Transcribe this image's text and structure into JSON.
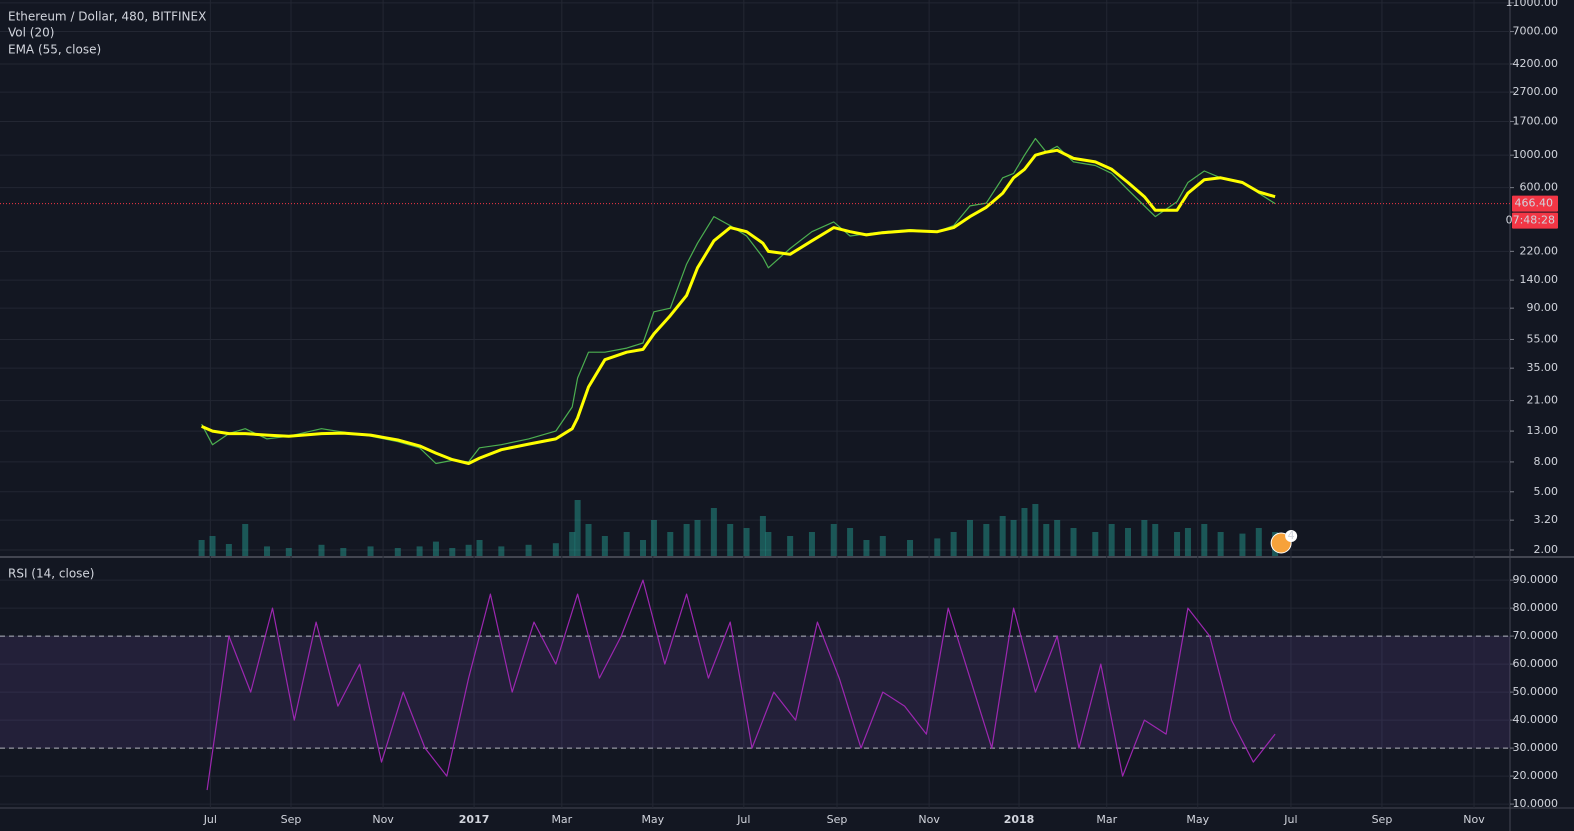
{
  "chart_data": [
    {
      "type": "line",
      "title": "Ethereum / Dollar, 480, BITFINEX",
      "log_scale": true,
      "grid": true,
      "x": [
        2016.5,
        2016.52,
        2016.55,
        2016.58,
        2016.62,
        2016.66,
        2016.72,
        2016.76,
        2016.81,
        2016.86,
        2016.9,
        2016.93,
        2016.96,
        2016.99,
        2017.01,
        2017.05,
        2017.1,
        2017.15,
        2017.18,
        2017.19,
        2017.21,
        2017.24,
        2017.28,
        2017.31,
        2017.33,
        2017.36,
        2017.39,
        2017.41,
        2017.44,
        2017.47,
        2017.5,
        2017.53,
        2017.54,
        2017.58,
        2017.62,
        2017.66,
        2017.69,
        2017.72,
        2017.75,
        2017.8,
        2017.85,
        2017.88,
        2017.91,
        2017.94,
        2017.97,
        2017.99,
        2018.01,
        2018.03,
        2018.05,
        2018.07,
        2018.1,
        2018.14,
        2018.17,
        2018.2,
        2018.23,
        2018.25,
        2018.29,
        2018.31,
        2018.34,
        2018.37,
        2018.41,
        2018.44,
        2018.47
      ],
      "series": [
        {
          "color": "#4caf50",
          "values": [
            14.5,
            10.5,
            12.5,
            13.5,
            11.5,
            12,
            13.5,
            12.8,
            12,
            11,
            10,
            7.8,
            8.2,
            8,
            10,
            10.5,
            11.5,
            13,
            19,
            30,
            45,
            45,
            48,
            52,
            85,
            90,
            180,
            250,
            380,
            330,
            280,
            200,
            170,
            230,
            300,
            350,
            280,
            290,
            300,
            310,
            300,
            330,
            450,
            470,
            700,
            750,
            1000,
            1300,
            1050,
            1150,
            900,
            850,
            750,
            580,
            450,
            380,
            480,
            650,
            780,
            700,
            650,
            550,
            466.4
          ]
        },
        {
          "name": "EMA (55, close)",
          "color": "#ffff00",
          "values": [
            14,
            13,
            12.5,
            12.5,
            12.2,
            12,
            12.5,
            12.6,
            12.2,
            11.3,
            10.3,
            9.2,
            8.3,
            7.8,
            8.5,
            9.7,
            10.6,
            11.5,
            13.5,
            16,
            26,
            40,
            45,
            47,
            60,
            80,
            110,
            170,
            260,
            320,
            300,
            250,
            220,
            210,
            260,
            320,
            300,
            285,
            295,
            305,
            300,
            320,
            380,
            440,
            550,
            700,
            800,
            1000,
            1050,
            1080,
            950,
            900,
            800,
            650,
            520,
            420,
            420,
            550,
            680,
            700,
            650,
            560,
            520
          ]
        }
      ],
      "volume": {
        "name": "Vol (20)",
        "color": "#26a69a",
        "ylim": [
          0,
          100
        ],
        "values": [
          20,
          25,
          15,
          40,
          12,
          10,
          14,
          10,
          12,
          10,
          12,
          18,
          10,
          14,
          20,
          12,
          14,
          16,
          30,
          70,
          40,
          25,
          30,
          20,
          45,
          30,
          40,
          45,
          60,
          40,
          35,
          50,
          30,
          25,
          30,
          40,
          35,
          20,
          25,
          20,
          22,
          30,
          45,
          40,
          50,
          45,
          60,
          65,
          40,
          45,
          35,
          30,
          40,
          35,
          45,
          40,
          30,
          35,
          40,
          30,
          28,
          35,
          30
        ]
      },
      "xlim": [
        2016.13,
        2018.901
      ],
      "ylim": [
        1.82,
        11500
      ],
      "yticks": [
        {
          "value": 11000,
          "label": "11000.00"
        },
        {
          "value": 7000,
          "label": "7000.00"
        },
        {
          "value": 4200,
          "label": "4200.00"
        },
        {
          "value": 2700,
          "label": "2700.00"
        },
        {
          "value": 1700,
          "label": "1700.00"
        },
        {
          "value": 1000,
          "label": "1000.00"
        },
        {
          "value": 600,
          "label": "600.00"
        },
        {
          "value": 220,
          "label": "220.00"
        },
        {
          "value": 140,
          "label": "140.00"
        },
        {
          "value": 90,
          "label": "90.00"
        },
        {
          "value": 55,
          "label": "55.00"
        },
        {
          "value": 35,
          "label": "35.00"
        },
        {
          "value": 21,
          "label": "21.00"
        },
        {
          "value": 13,
          "label": "13.00"
        },
        {
          "value": 8,
          "label": "8.00"
        },
        {
          "value": 5,
          "label": "5.00"
        },
        {
          "value": 3.2,
          "label": "3.20"
        },
        {
          "value": 2,
          "label": "2.00"
        }
      ],
      "last_price": {
        "value": 466.4,
        "label": "466.40"
      },
      "countdown": "07:48:28",
      "event_count": 4
    },
    {
      "type": "line",
      "title": "RSI (14, close)",
      "grid": true,
      "x": [
        2016.51,
        2016.55,
        2016.59,
        2016.63,
        2016.67,
        2016.71,
        2016.75,
        2016.79,
        2016.83,
        2016.87,
        2016.91,
        2016.95,
        2016.99,
        2017.03,
        2017.07,
        2017.11,
        2017.15,
        2017.19,
        2017.23,
        2017.27,
        2017.31,
        2017.35,
        2017.39,
        2017.43,
        2017.47,
        2017.51,
        2017.55,
        2017.59,
        2017.63,
        2017.67,
        2017.71,
        2017.75,
        2017.79,
        2017.83,
        2017.87,
        2017.91,
        2017.95,
        2017.99,
        2018.03,
        2018.07,
        2018.11,
        2018.15,
        2018.19,
        2018.23,
        2018.27,
        2018.31,
        2018.35,
        2018.39,
        2018.43,
        2018.47
      ],
      "series": [
        {
          "color": "#9c27b0",
          "values": [
            15,
            70,
            50,
            80,
            40,
            75,
            45,
            60,
            25,
            50,
            30,
            20,
            55,
            85,
            50,
            75,
            60,
            85,
            55,
            70,
            90,
            60,
            85,
            55,
            75,
            30,
            50,
            40,
            75,
            55,
            30,
            50,
            45,
            35,
            80,
            55,
            30,
            80,
            50,
            70,
            30,
            60,
            20,
            40,
            35,
            80,
            70,
            40,
            25,
            35
          ]
        }
      ],
      "bands": [
        30,
        70
      ],
      "xlim": [
        2016.13,
        2018.901
      ],
      "ylim": [
        8.6,
        97.9
      ],
      "yticks": [
        {
          "value": 90,
          "label": "90.0000"
        },
        {
          "value": 80,
          "label": "80.0000"
        },
        {
          "value": 70,
          "label": "70.0000"
        },
        {
          "value": 60,
          "label": "60.0000"
        },
        {
          "value": 50,
          "label": "50.0000"
        },
        {
          "value": 40,
          "label": "40.0000"
        },
        {
          "value": 30,
          "label": "30.0000"
        },
        {
          "value": 20,
          "label": "20.0000"
        },
        {
          "value": 10,
          "label": "10.0000"
        }
      ],
      "xticks": [
        {
          "value": 2016.516,
          "label": "Jul"
        },
        {
          "value": 2016.664,
          "label": "Sep"
        },
        {
          "value": 2016.833,
          "label": "Nov"
        },
        2017,
        {
          "value": 2017.161,
          "label": "Mar"
        },
        {
          "value": 2017.328,
          "label": "May"
        },
        {
          "value": 2017.495,
          "label": "Jul"
        },
        {
          "value": 2017.666,
          "label": "Sep"
        },
        {
          "value": 2017.835,
          "label": "Nov"
        },
        2018,
        {
          "value": 2018.161,
          "label": "Mar"
        },
        {
          "value": 2018.328,
          "label": "May"
        },
        {
          "value": 2018.499,
          "label": "Jul"
        },
        {
          "value": 2018.666,
          "label": "Sep"
        },
        {
          "value": 2018.835,
          "label": "Nov"
        }
      ]
    }
  ]
}
